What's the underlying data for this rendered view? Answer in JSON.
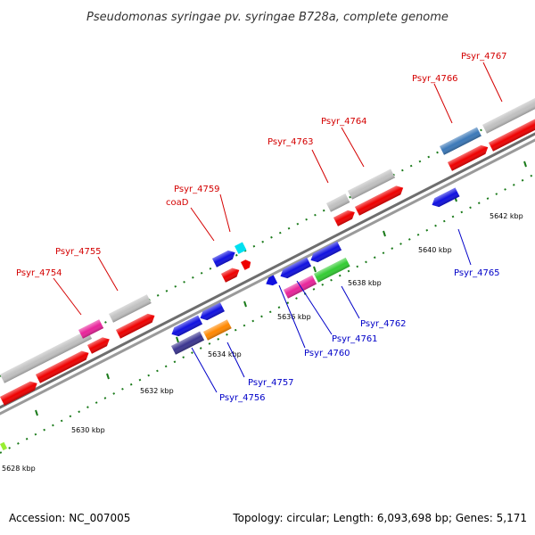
{
  "title": "Pseudomonas syringae pv. syringae B728a, complete genome",
  "footer": {
    "accession": "Accession: NC_007005",
    "summary": "Topology: circular; Length: 6,093,698 bp; Genes: 5,171"
  },
  "colors": {
    "label_forward": "#d40000",
    "label_reverse": "#0000c8",
    "backbone": "#8c8c8c",
    "tick": "#1a7a1a"
  },
  "ticks": [
    {
      "label": "5628 kbp",
      "strand": "reverse"
    },
    {
      "label": "5630 kbp",
      "strand": "reverse"
    },
    {
      "label": "5632 kbp",
      "strand": "reverse"
    },
    {
      "label": "5634 kbp",
      "strand": "reverse"
    },
    {
      "label": "5636 kbp",
      "strand": "reverse"
    },
    {
      "label": "5638 kbp",
      "strand": "reverse"
    },
    {
      "label": "5640 kbp",
      "strand": "reverse"
    },
    {
      "label": "5642 kbp",
      "strand": "reverse"
    }
  ],
  "gene_labels": [
    {
      "text": "Psyr_4754",
      "strand": "forward"
    },
    {
      "text": "Psyr_4755",
      "strand": "forward"
    },
    {
      "text": "coaD",
      "strand": "forward"
    },
    {
      "text": "Psyr_4759",
      "strand": "forward"
    },
    {
      "text": "Psyr_4763",
      "strand": "forward"
    },
    {
      "text": "Psyr_4764",
      "strand": "forward"
    },
    {
      "text": "Psyr_4766",
      "strand": "forward"
    },
    {
      "text": "Psyr_4767",
      "strand": "forward"
    },
    {
      "text": "Psyr_4756",
      "strand": "reverse"
    },
    {
      "text": "Psyr_4757",
      "strand": "reverse"
    },
    {
      "text": "Psyr_4760",
      "strand": "reverse"
    },
    {
      "text": "Psyr_4761",
      "strand": "reverse"
    },
    {
      "text": "Psyr_4762",
      "strand": "reverse"
    },
    {
      "text": "Psyr_4765",
      "strand": "reverse"
    }
  ]
}
